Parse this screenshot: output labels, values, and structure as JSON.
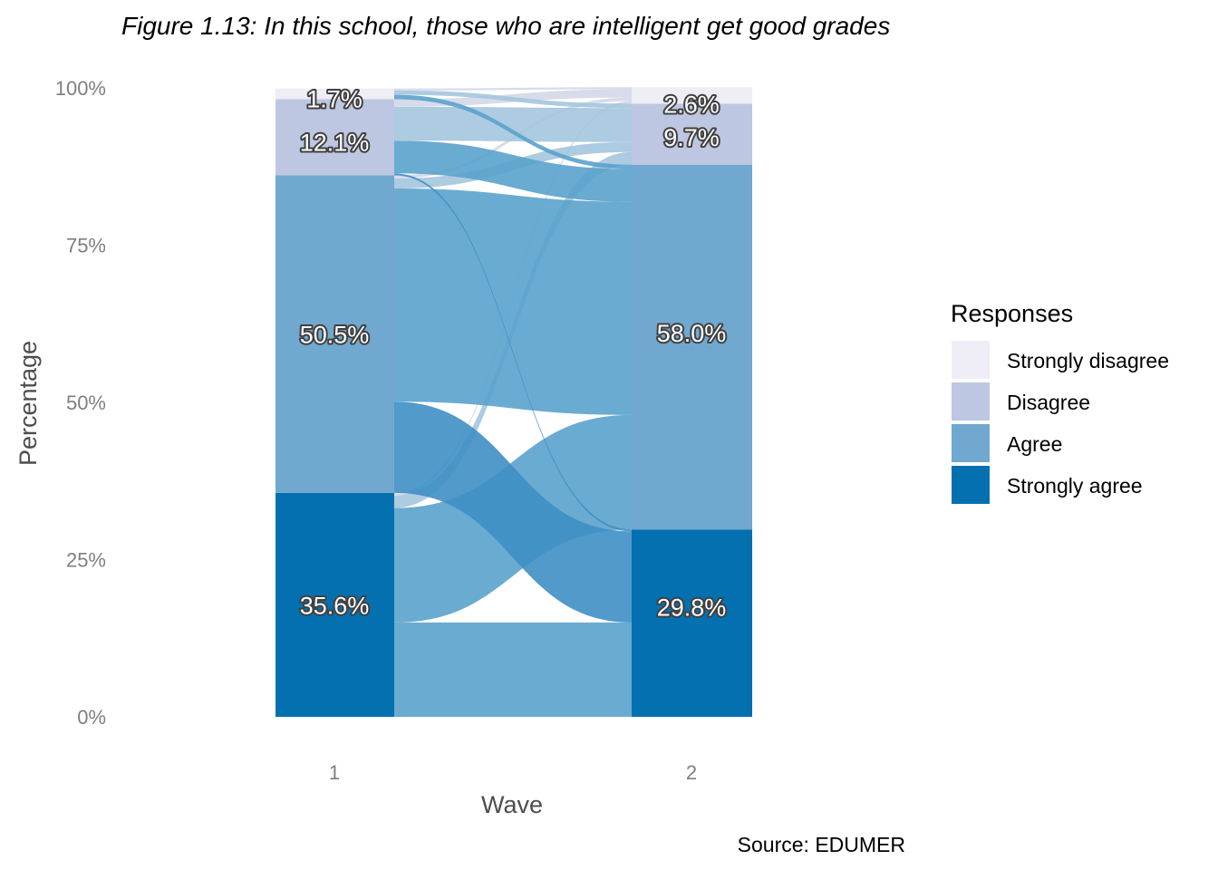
{
  "chart_data": {
    "type": "alluvial",
    "title": "Figure 1.13: In this school, those who are intelligent get good grades",
    "xlabel": "Wave",
    "ylabel": "Percentage",
    "caption": "Source: EDUMER",
    "x": [
      "1",
      "2"
    ],
    "y_ticks": [
      "0%",
      "25%",
      "50%",
      "75%",
      "100%"
    ],
    "ylim": [
      0,
      100
    ],
    "legend_title": "Responses",
    "legend_position": "right",
    "categories": [
      "Strongly agree",
      "Agree",
      "Disagree",
      "Strongly disagree"
    ],
    "colors": {
      "Strongly disagree": "#EFEDF5",
      "Disagree": "#BDC7E1",
      "Agree": "#71A8CF",
      "Strongly agree": "#0570B0"
    },
    "legend_order": [
      "Strongly disagree",
      "Disagree",
      "Agree",
      "Strongly agree"
    ],
    "series": [
      {
        "name": "Strongly agree",
        "values": [
          35.6,
          29.8
        ],
        "labels": [
          "35.6%",
          "29.8%"
        ]
      },
      {
        "name": "Agree",
        "values": [
          50.5,
          58.0
        ],
        "labels": [
          "50.5%",
          "58.0%"
        ]
      },
      {
        "name": "Disagree",
        "values": [
          12.1,
          9.7
        ],
        "labels": [
          "12.1%",
          "9.7%"
        ]
      },
      {
        "name": "Strongly disagree",
        "values": [
          1.7,
          2.6
        ],
        "labels": [
          "1.7%",
          "2.6%"
        ]
      }
    ],
    "flows": [
      {
        "from": "Strongly agree",
        "to": "Strongly agree",
        "value": 15.0
      },
      {
        "from": "Strongly agree",
        "to": "Agree",
        "value": 18.2
      },
      {
        "from": "Strongly agree",
        "to": "Disagree",
        "value": 2.0
      },
      {
        "from": "Strongly agree",
        "to": "Strongly disagree",
        "value": 0.4
      },
      {
        "from": "Agree",
        "to": "Strongly agree",
        "value": 14.5
      },
      {
        "from": "Agree",
        "to": "Agree",
        "value": 33.9
      },
      {
        "from": "Agree",
        "to": "Disagree",
        "value": 1.6
      },
      {
        "from": "Agree",
        "to": "Strongly disagree",
        "value": 0.5
      },
      {
        "from": "Disagree",
        "to": "Strongly agree",
        "value": 0.3
      },
      {
        "from": "Disagree",
        "to": "Agree",
        "value": 5.2
      },
      {
        "from": "Disagree",
        "to": "Disagree",
        "value": 5.4
      },
      {
        "from": "Disagree",
        "to": "Strongly disagree",
        "value": 1.2
      },
      {
        "from": "Strongly disagree",
        "to": "Strongly agree",
        "value": 0.0
      },
      {
        "from": "Strongly disagree",
        "to": "Agree",
        "value": 0.7
      },
      {
        "from": "Strongly disagree",
        "to": "Disagree",
        "value": 0.7
      },
      {
        "from": "Strongly disagree",
        "to": "Strongly disagree",
        "value": 0.3
      }
    ],
    "grid": false
  }
}
